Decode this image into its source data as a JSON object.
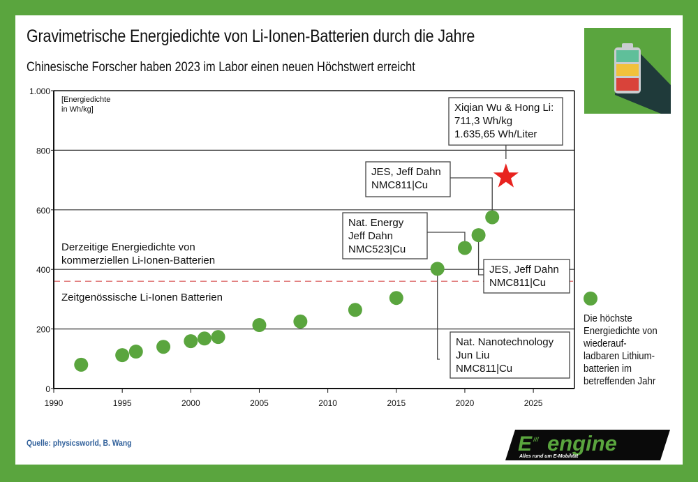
{
  "title": "Gravimetrische Energiedichte von Li-Ionen-Batterien durch die Jahre",
  "subtitle": "Chinesische Forscher haben 2023 im Labor einen neuen Höchstwert erreicht",
  "source": "Quelle: physicsworld, B. Wang",
  "logo": {
    "name": "e-engine",
    "tagline": "Alles rund um E-Mobilität",
    "text_e": "E",
    "text_engine": "engine"
  },
  "icon": "battery-icon",
  "colors": {
    "frame": "#5aa53e",
    "dot": "#5aa53e",
    "star": "#e8231f",
    "dashed": "#e07a7a",
    "source": "#2f5f9a"
  },
  "legend": {
    "text": "Die höchste\nEnergiedichte von\nwiederauf-\nladbaren Lithium-\nbatterien im\nbetreffenden Jahr"
  },
  "chart_data": {
    "type": "scatter",
    "title": "Gravimetrische Energiedichte von Li-Ionen-Batterien durch die Jahre",
    "ylabel_line1": "[Energiedichte",
    "ylabel_line2": "in Wh/kg]",
    "xlim": [
      1990,
      2028
    ],
    "ylim": [
      0,
      1000
    ],
    "x_ticks": [
      1990,
      1995,
      2000,
      2005,
      2010,
      2015,
      2020,
      2025
    ],
    "x_tick_labels": [
      "1990",
      "1995",
      "2000",
      "2005",
      "2010",
      "2015",
      "2020",
      "2025"
    ],
    "y_ticks": [
      0,
      200,
      400,
      600,
      800,
      1000
    ],
    "y_tick_labels": [
      "0",
      "200",
      "400",
      "600",
      "800",
      "1.000"
    ],
    "grid": "horizontal",
    "series": [
      {
        "name": "Die höchste Energiedichte von wiederaufladbaren Lithiumbatterien im betreffenden Jahr",
        "points": [
          {
            "x": 1992,
            "y": 80
          },
          {
            "x": 1995,
            "y": 112
          },
          {
            "x": 1996,
            "y": 124
          },
          {
            "x": 1998,
            "y": 140
          },
          {
            "x": 2000,
            "y": 159
          },
          {
            "x": 2001,
            "y": 168
          },
          {
            "x": 2002,
            "y": 173
          },
          {
            "x": 2005,
            "y": 213
          },
          {
            "x": 2008,
            "y": 225
          },
          {
            "x": 2012,
            "y": 264
          },
          {
            "x": 2015,
            "y": 304
          },
          {
            "x": 2018,
            "y": 402
          },
          {
            "x": 2020,
            "y": 472
          },
          {
            "x": 2021,
            "y": 515
          },
          {
            "x": 2022,
            "y": 575
          }
        ]
      }
    ],
    "record": {
      "x": 2023,
      "y": 711.3,
      "marker": "star"
    },
    "reference_lines": [
      {
        "y": 400,
        "style": "solid",
        "label_line1": "Derzeitige Energiedichte von",
        "label_line2": "kommerziellen Li-Ionen-Batterien"
      },
      {
        "y": 360,
        "style": "dashed",
        "label": "Zeitgenössische Li-Ionen Batterien"
      }
    ],
    "annotations": [
      {
        "target_year": 2023,
        "lines": [
          "Xiqian Wu & Hong Li:",
          "711,3 Wh/kg",
          "1.635,65 Wh/Liter"
        ]
      },
      {
        "target_year": 2022,
        "lines": [
          "JES, Jeff Dahn",
          "NMC811|Cu"
        ]
      },
      {
        "target_year": 2020,
        "lines": [
          "Nat. Energy",
          "Jeff Dahn",
          "NMC523|Cu"
        ]
      },
      {
        "target_year": 2021,
        "lines": [
          "JES, Jeff Dahn",
          "NMC811|Cu"
        ]
      },
      {
        "target_year": 2018,
        "lines": [
          "Nat. Nanotechnology",
          "Jun Liu",
          "NMC811|Cu"
        ]
      }
    ]
  }
}
